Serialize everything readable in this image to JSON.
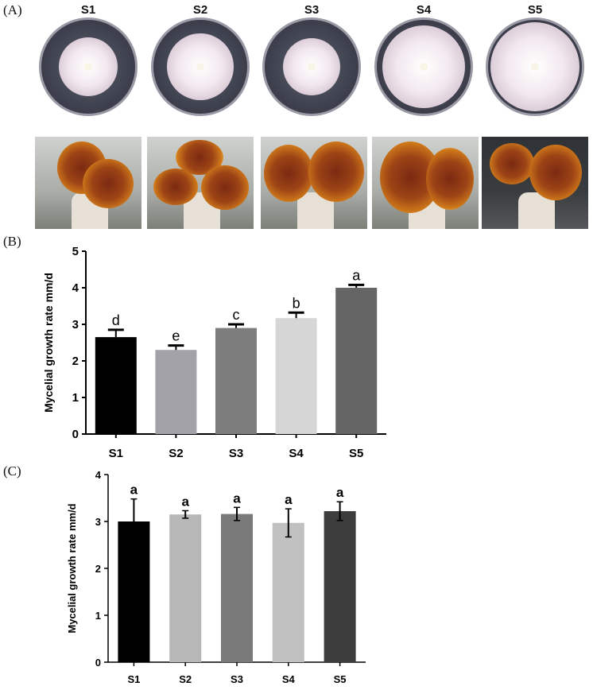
{
  "panel_labels": {
    "a": "(A)",
    "b": "(B)",
    "c": "(C)"
  },
  "strains": [
    "S1",
    "S2",
    "S3",
    "S4",
    "S5"
  ],
  "colors": {
    "b_bars": [
      "#000000",
      "#a3a2a8",
      "#7d7d7d",
      "#d6d6d6",
      "#656565"
    ],
    "c_bars": [
      "#000000",
      "#b7b7b7",
      "#7a7a7a",
      "#c1c1c1",
      "#3d3d3d"
    ],
    "plate": "#3b3e4a",
    "mushroom": "#9d4416"
  },
  "chart_data": [
    {
      "type": "bar",
      "panel": "B",
      "categories": [
        "S1",
        "S2",
        "S3",
        "S4",
        "S5"
      ],
      "values": [
        2.65,
        2.3,
        2.9,
        3.17,
        4.0
      ],
      "errors": [
        0.2,
        0.12,
        0.1,
        0.15,
        0.08
      ],
      "significance_labels": [
        "d",
        "e",
        "c",
        "b",
        "a"
      ],
      "ylabel": "Mycelial growth rate mm/d",
      "ylim": [
        0,
        5
      ],
      "yticks": [
        0,
        1,
        2,
        3,
        4,
        5
      ],
      "grid": false
    },
    {
      "type": "bar",
      "panel": "C",
      "categories": [
        "S1",
        "S2",
        "S3",
        "S4",
        "S5"
      ],
      "values": [
        3.0,
        3.15,
        3.16,
        2.97,
        3.22
      ],
      "errors": [
        0.48,
        0.08,
        0.14,
        0.3,
        0.2
      ],
      "significance_labels": [
        "a",
        "a",
        "a",
        "a",
        "a"
      ],
      "ylabel": "Mycelial growth rate mm/d",
      "ylim": [
        0,
        4
      ],
      "yticks": [
        0,
        1,
        2,
        3,
        4
      ],
      "grid": false
    }
  ]
}
